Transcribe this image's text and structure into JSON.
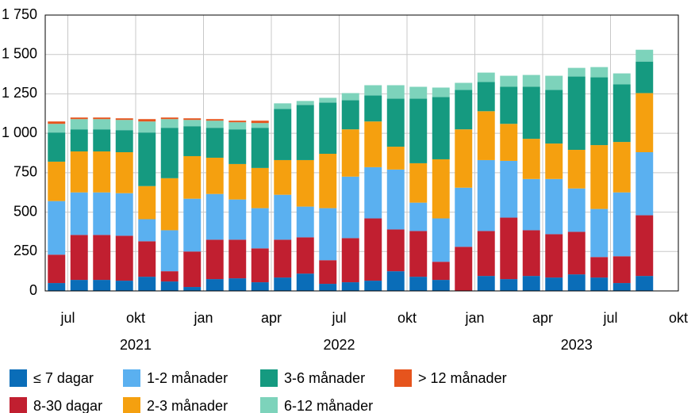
{
  "chart_data": {
    "type": "stacked_bar",
    "x": [
      0,
      1,
      2,
      3,
      4,
      5,
      6,
      7,
      8,
      9,
      10,
      11,
      12,
      13,
      14,
      15,
      16,
      17,
      18,
      19,
      20,
      21,
      22,
      23,
      24,
      25,
      26
    ],
    "xlim": [
      -0.5,
      27.5
    ],
    "xticks": [
      {
        "value": 0.5,
        "label": "jul"
      },
      {
        "value": 3.5,
        "label": "okt"
      },
      {
        "value": 6.5,
        "label": "jan"
      },
      {
        "value": 9.5,
        "label": "apr"
      },
      {
        "value": 12.5,
        "label": "jul"
      },
      {
        "value": 15.5,
        "label": "okt"
      },
      {
        "value": 18.5,
        "label": "jan"
      },
      {
        "value": 21.5,
        "label": "apr"
      },
      {
        "value": 24.5,
        "label": "jul"
      },
      {
        "value": 27.5,
        "label": "okt"
      }
    ],
    "x_groups": [
      {
        "value": 3.5,
        "label": "2021"
      },
      {
        "value": 12.5,
        "label": "2022"
      },
      {
        "value": 23,
        "label": "2023"
      }
    ],
    "ylim": [
      0,
      1750
    ],
    "yticks": [
      0,
      250,
      500,
      750,
      {
        "value": 1000,
        "label": "1 000"
      },
      {
        "value": 1250,
        "label": "1 250"
      },
      {
        "value": 1500,
        "label": "1 500"
      },
      {
        "value": 1750,
        "label": "1 750"
      }
    ],
    "grid": true,
    "series": [
      {
        "name": "≤ 7 dagar",
        "color": "#0a6db8",
        "values": [
          50,
          70,
          70,
          65,
          90,
          60,
          25,
          75,
          80,
          55,
          85,
          110,
          45,
          55,
          65,
          125,
          90,
          70,
          0,
          95,
          75,
          95,
          85,
          105,
          85,
          50,
          95
        ]
      },
      {
        "name": "8-30 dagar",
        "color": "#c11f30",
        "values": [
          180,
          285,
          285,
          285,
          225,
          65,
          225,
          250,
          245,
          215,
          240,
          230,
          150,
          280,
          395,
          265,
          290,
          115,
          280,
          285,
          390,
          290,
          275,
          270,
          130,
          170,
          385
        ]
      },
      {
        "name": "1-2 månader",
        "color": "#5ab0f0",
        "values": [
          340,
          270,
          270,
          270,
          140,
          260,
          335,
          290,
          255,
          255,
          285,
          195,
          330,
          390,
          325,
          380,
          180,
          275,
          375,
          450,
          360,
          325,
          350,
          275,
          305,
          405,
          400
        ]
      },
      {
        "name": "2-3 månader",
        "color": "#f5a00f",
        "values": [
          250,
          260,
          260,
          260,
          210,
          330,
          270,
          230,
          225,
          255,
          220,
          295,
          345,
          300,
          290,
          145,
          250,
          375,
          370,
          310,
          235,
          255,
          225,
          245,
          405,
          320,
          375
        ]
      },
      {
        "name": "3-6 månader",
        "color": "#159a80",
        "values": [
          185,
          140,
          140,
          140,
          340,
          320,
          190,
          190,
          220,
          255,
          325,
          350,
          325,
          185,
          165,
          305,
          410,
          395,
          250,
          185,
          235,
          330,
          340,
          465,
          430,
          365,
          200
        ]
      },
      {
        "name": "6-12 månader",
        "color": "#7dd3bb",
        "values": [
          55,
          65,
          65,
          65,
          70,
          55,
          40,
          45,
          45,
          30,
          35,
          25,
          30,
          45,
          65,
          85,
          75,
          60,
          45,
          60,
          70,
          75,
          90,
          55,
          65,
          70,
          75
        ]
      },
      {
        "name": "> 12 månader",
        "color": "#e6541d",
        "values": [
          15,
          10,
          10,
          10,
          15,
          10,
          10,
          10,
          10,
          15,
          0,
          0,
          0,
          0,
          0,
          0,
          0,
          0,
          0,
          0,
          0,
          0,
          0,
          0,
          0,
          0,
          0
        ]
      }
    ]
  }
}
